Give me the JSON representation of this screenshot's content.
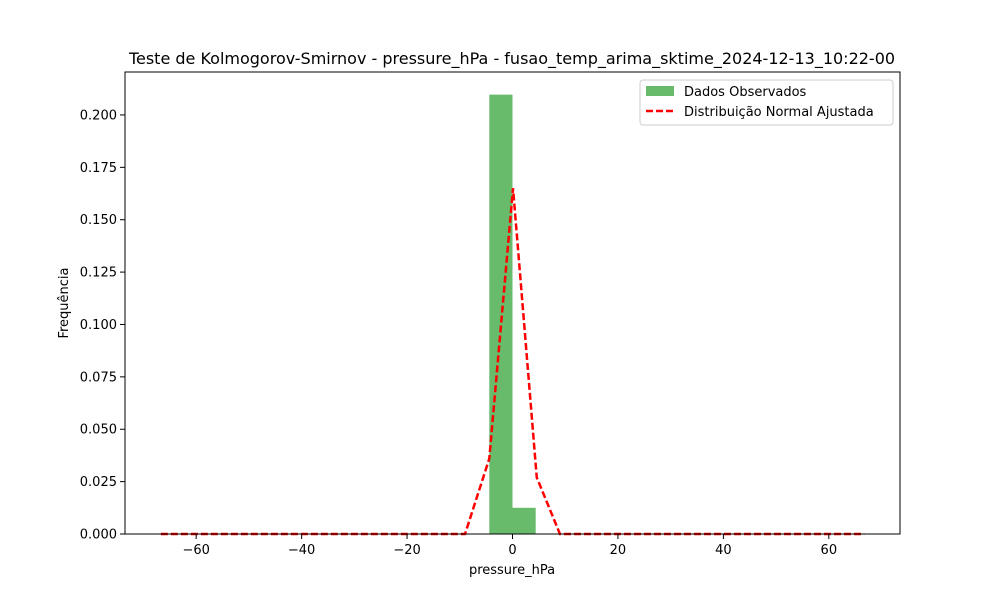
{
  "chart_data": {
    "type": "bar",
    "title": "Teste de Kolmogorov-Smirnov - pressure_hPa - fusao_temp_arima_sktime_2024-12-13_10:22-00",
    "xlabel": "pressure_hPa",
    "ylabel": "Frequência",
    "xlim": [
      -73.5,
      73.5
    ],
    "ylim": [
      0,
      0.2205
    ],
    "x_ticks": [
      -60,
      -40,
      -20,
      0,
      20,
      40,
      60
    ],
    "x_tick_labels": [
      "−60",
      "−40",
      "−20",
      "0",
      "20",
      "40",
      "60"
    ],
    "y_ticks": [
      0,
      0.025,
      0.05,
      0.075,
      0.1,
      0.125,
      0.15,
      0.175,
      0.2
    ],
    "y_tick_labels": [
      "0.000",
      "0.025",
      "0.050",
      "0.075",
      "0.100",
      "0.125",
      "0.150",
      "0.175",
      "0.200"
    ],
    "grid": false,
    "legend_position": "top-right",
    "histogram": {
      "name": "Dados Observados",
      "color": "#4caf50",
      "bins": [
        {
          "x0": -4.4,
          "x1": 0.0,
          "value": 0.2097
        },
        {
          "x0": 0.0,
          "x1": 4.4,
          "value": 0.0125
        }
      ]
    },
    "fit_line": {
      "name": "Distribuição Normal Ajustada",
      "color": "#ff0000",
      "style": "dashed",
      "x": [
        -66.7,
        -9.0,
        -4.4,
        0.1,
        4.6,
        9.0,
        66.7
      ],
      "y": [
        0.0,
        0.0,
        0.036,
        0.165,
        0.027,
        0.0,
        0.0
      ]
    }
  }
}
